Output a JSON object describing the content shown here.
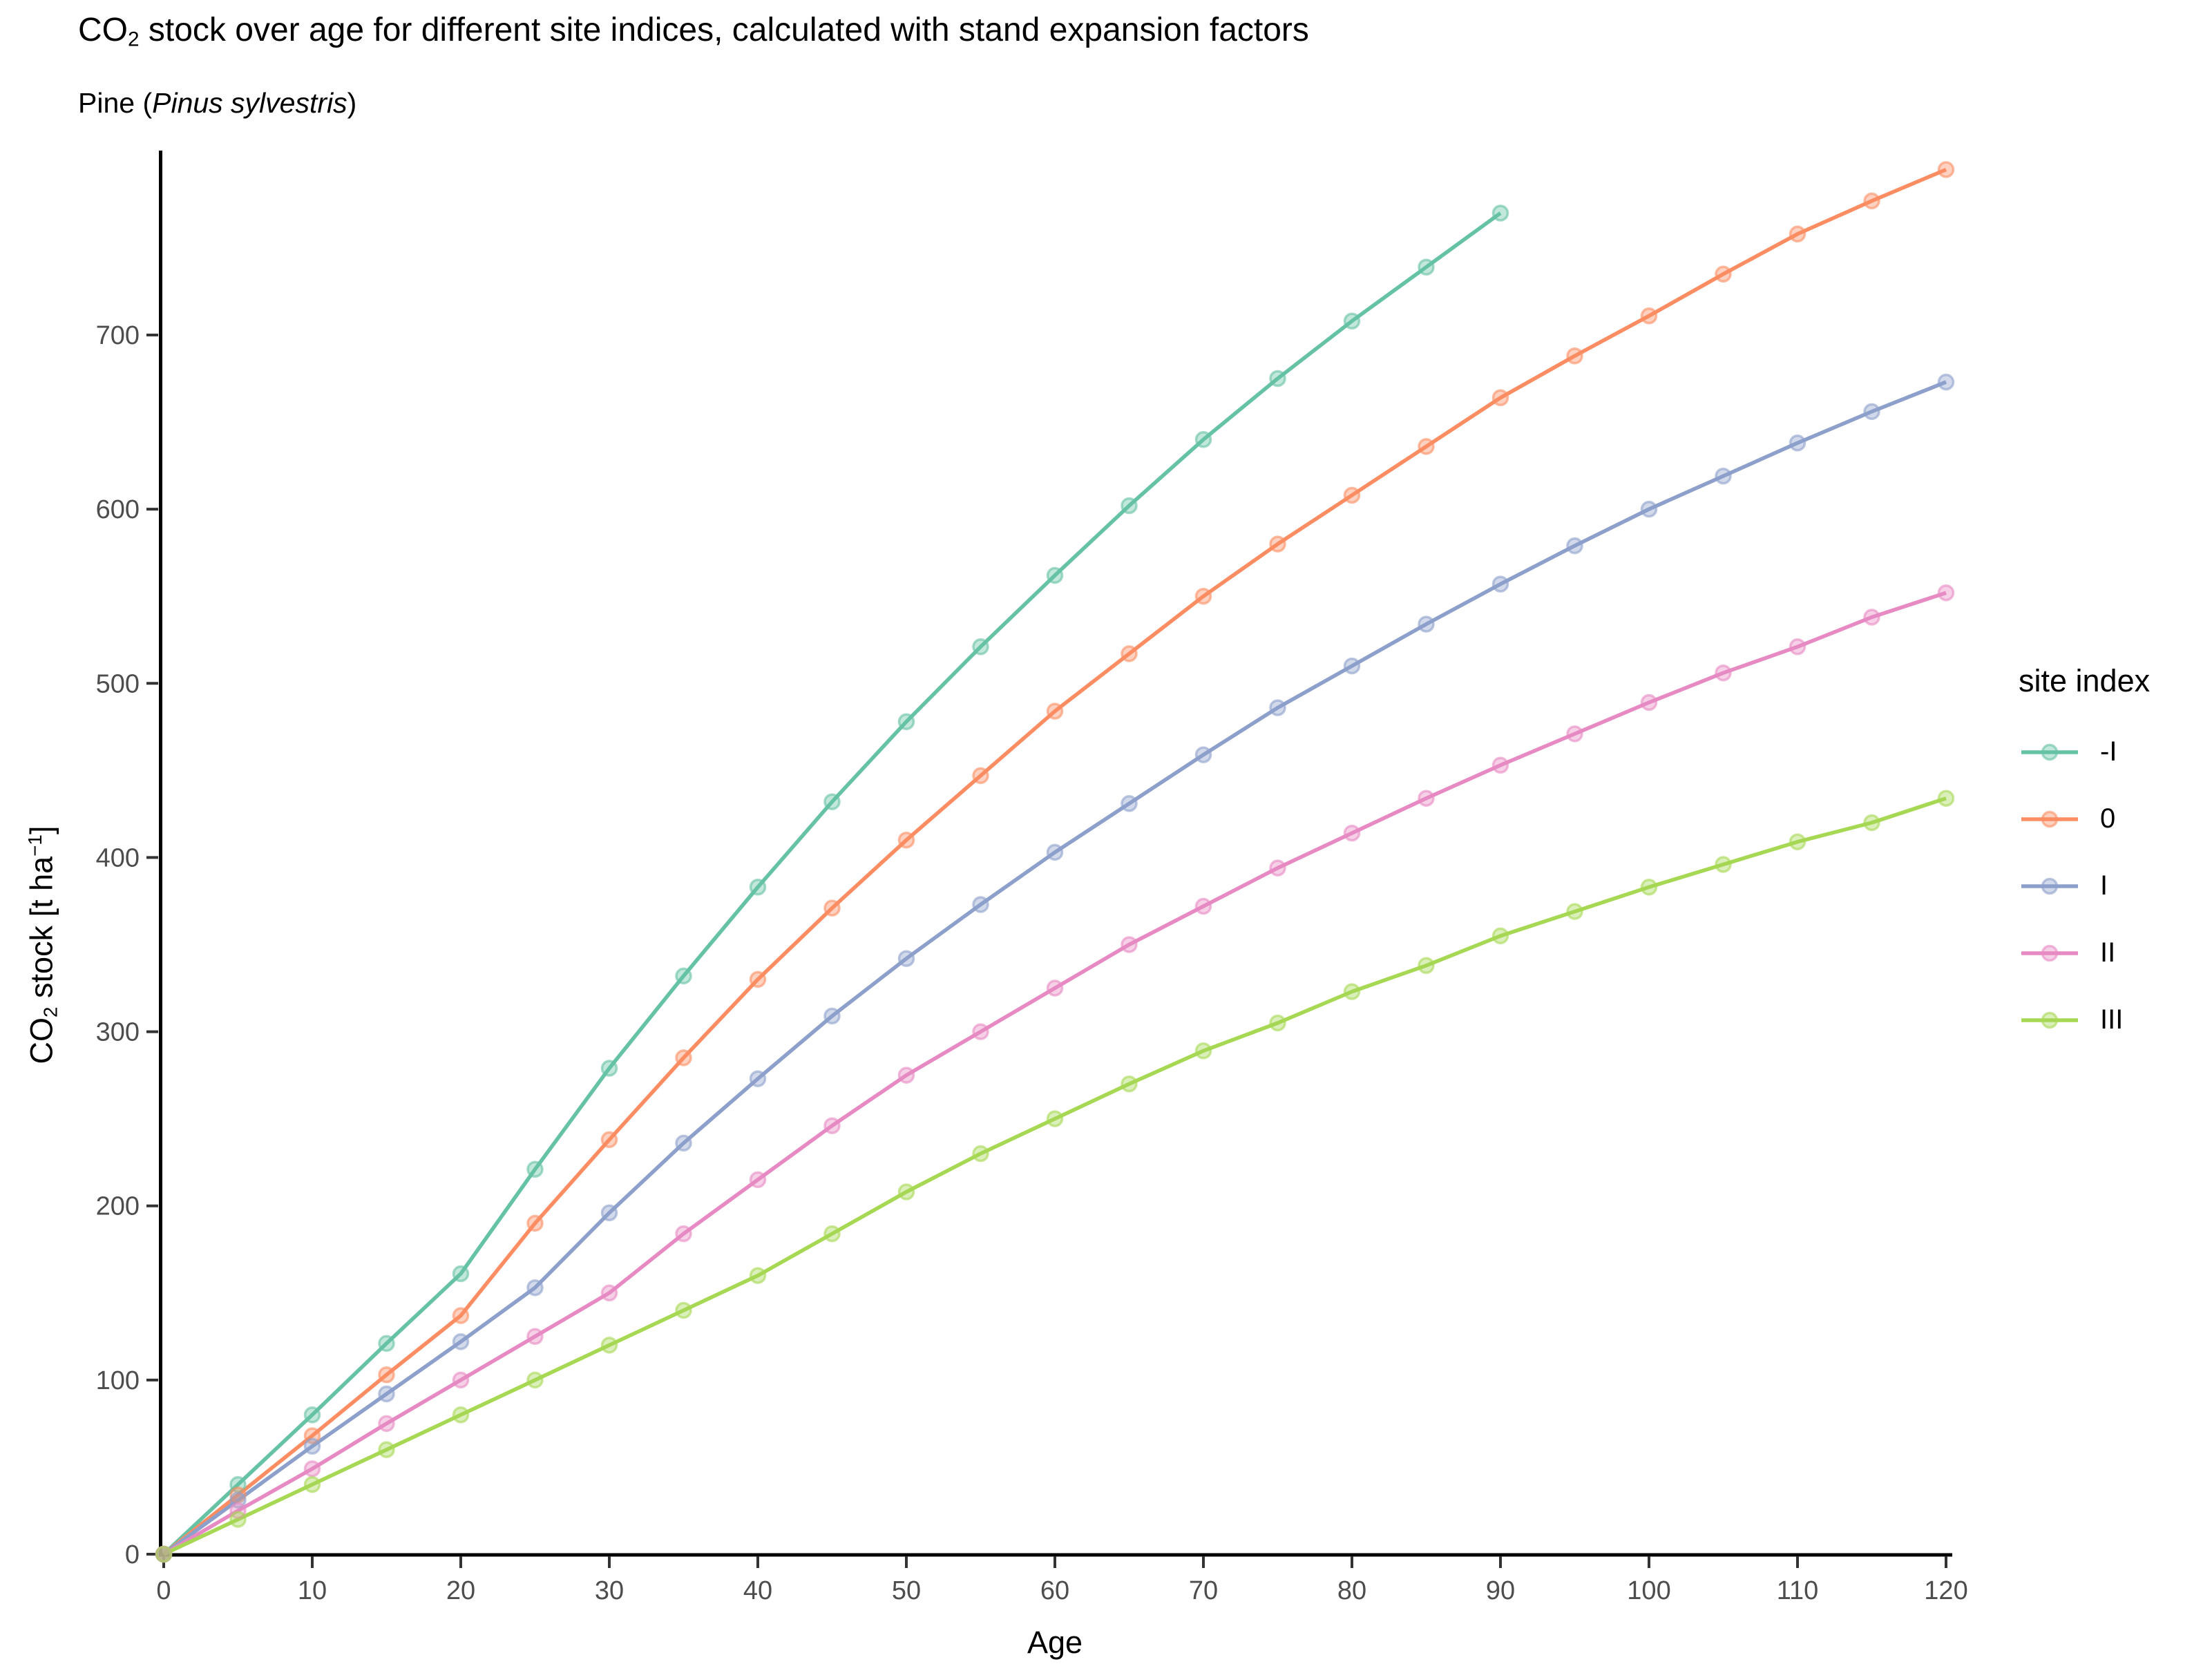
{
  "title": {
    "pre": "CO",
    "sub": "2",
    "post": " stock over age for different site indices, calculated with stand expansion factors"
  },
  "subtitle": {
    "pre": "Pine (",
    "species": "Pinus sylvestris",
    "post": ")"
  },
  "ylabel_parts": {
    "p1": "CO",
    "sub": "2",
    "p2": " stock [t ha",
    "sup": "−1",
    "p3": "]"
  },
  "legend": {
    "title": "site index"
  },
  "styles": {
    "axis_line_color": "#000000",
    "tick_mark_color": "#333333",
    "tick_label_color": "#4d4d4d",
    "background": "#ffffff"
  },
  "chart_data": {
    "type": "line",
    "title": "CO2 stock over age for different site indices, calculated with stand expansion factors",
    "subtitle": "Pine (Pinus sylvestris)",
    "xlabel": "Age",
    "ylabel": "CO2 stock [t ha^-1]",
    "legend_title": "site index",
    "legend_position": "right",
    "grid": false,
    "xlim": [
      0,
      120
    ],
    "ylim": [
      0,
      835
    ],
    "x_ticks": [
      0,
      10,
      20,
      30,
      40,
      50,
      60,
      70,
      80,
      90,
      100,
      110,
      120
    ],
    "y_ticks": [
      0,
      100,
      200,
      300,
      400,
      500,
      600,
      700
    ],
    "x": [
      0,
      5,
      10,
      15,
      20,
      25,
      30,
      35,
      40,
      45,
      50,
      55,
      60,
      65,
      70,
      75,
      80,
      85,
      90,
      95,
      100,
      105,
      110,
      115,
      120
    ],
    "series": [
      {
        "name": "-I",
        "color": "#66C2A5",
        "values": [
          0,
          40,
          80,
          121,
          161,
          221,
          279,
          332,
          383,
          432,
          478,
          521,
          562,
          602,
          640,
          675,
          708,
          739,
          770
        ]
      },
      {
        "name": "0",
        "color": "#FC8D62",
        "values": [
          0,
          34,
          68,
          103,
          137,
          190,
          238,
          285,
          330,
          371,
          410,
          447,
          484,
          517,
          550,
          580,
          608,
          636,
          664,
          688,
          711,
          735,
          758,
          777,
          795
        ]
      },
      {
        "name": "I",
        "color": "#8DA0CB",
        "values": [
          0,
          31,
          62,
          92,
          122,
          153,
          196,
          236,
          273,
          309,
          342,
          373,
          403,
          431,
          459,
          486,
          510,
          534,
          557,
          579,
          600,
          619,
          638,
          656,
          673
        ]
      },
      {
        "name": "II",
        "color": "#E78AC3",
        "values": [
          0,
          25,
          49,
          75,
          100,
          125,
          150,
          184,
          215,
          246,
          275,
          300,
          325,
          350,
          372,
          394,
          414,
          434,
          453,
          471,
          489,
          506,
          521,
          538,
          552
        ]
      },
      {
        "name": "III",
        "color": "#A6D854",
        "values": [
          0,
          20,
          40,
          60,
          80,
          100,
          120,
          140,
          160,
          184,
          208,
          230,
          250,
          270,
          289,
          305,
          323,
          338,
          355,
          369,
          383,
          396,
          409,
          420,
          434
        ]
      }
    ]
  }
}
